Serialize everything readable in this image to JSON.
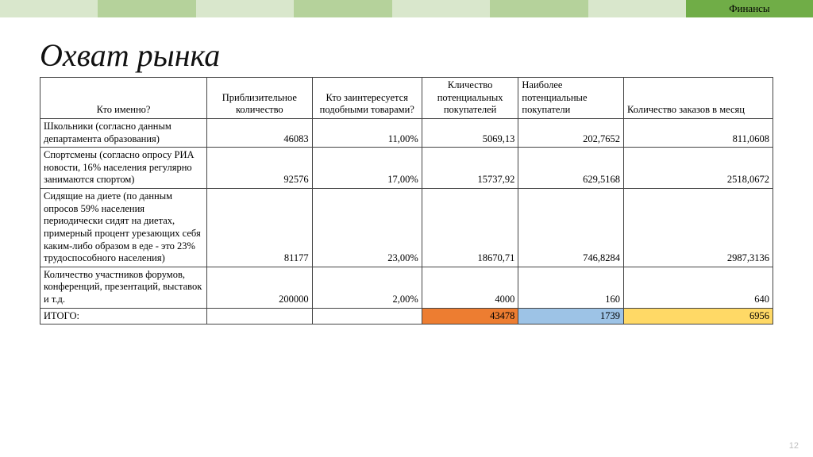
{
  "topbar": {
    "segments": [
      "#d9e7cc",
      "#b5d29b",
      "#d9e7cc",
      "#b5d29b",
      "#d9e7cc",
      "#b5d29b",
      "#d9e7cc"
    ],
    "accent_bg": "#70ad47",
    "label": "Финансы"
  },
  "title": "Охват рынка",
  "table": {
    "col_widths": [
      "190px",
      "120px",
      "125px",
      "110px",
      "120px",
      "170px"
    ],
    "headers": [
      "Кто именно?",
      "Приблизительное количество",
      "Кто заинтересуется подобными товарами?",
      "Кличество потенциальных покупателей",
      "Наиболее потенциальные покупатели",
      "Количество заказов в месяц"
    ],
    "header_align": [
      "center",
      "center",
      "center",
      "center",
      "left",
      "left"
    ],
    "rows": [
      {
        "who": "Школьники (согласно данным департамента образования)",
        "approx": "46083",
        "interest": "11,00%",
        "potential": "5069,13",
        "most": "202,7652",
        "orders": "811,0608"
      },
      {
        "who": "Спортсмены (согласно опросу РИА новости, 16% населения регулярно занимаются спортом)",
        "approx": "92576",
        "interest": "17,00%",
        "potential": "15737,92",
        "most": "629,5168",
        "orders": "2518,0672"
      },
      {
        "who": "Сидящие на диете (по данным опросов 59% населения периодически сидят на диетах, примерный процент урезающих себя каким-либо образом в еде - это 23% трудоспособного населения)",
        "approx": "81177",
        "interest": "23,00%",
        "potential": "18670,71",
        "most": "746,8284",
        "orders": "2987,3136"
      },
      {
        "who": "Количество участников форумов, конференций, презентаций, выставок и т.д.",
        "approx": "200000",
        "interest": "2,00%",
        "potential": "4000",
        "most": "160",
        "orders": "640"
      }
    ],
    "total": {
      "label": "ИТОГО:",
      "cells": [
        {
          "value": "",
          "bg": "#ffffff"
        },
        {
          "value": "",
          "bg": "#ffffff"
        },
        {
          "value": "43478",
          "bg": "#ed7d31"
        },
        {
          "value": "1739",
          "bg": "#9dc3e6"
        },
        {
          "value": "6956",
          "bg": "#ffd966"
        }
      ]
    }
  },
  "page_number": "12"
}
